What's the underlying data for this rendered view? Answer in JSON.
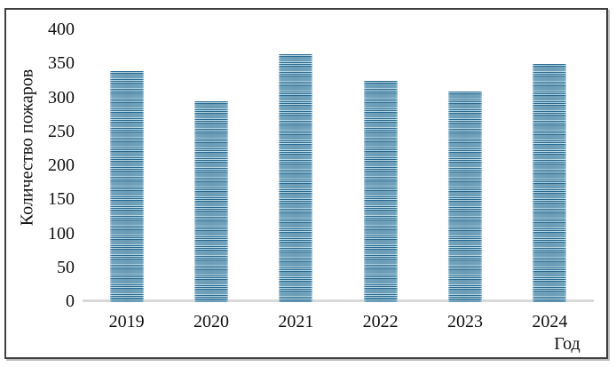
{
  "window": {
    "background": "#ffffff",
    "frame_border_color": "#3f3f3f",
    "frame_shadow_color": "#bdbdbd"
  },
  "chart_data": {
    "type": "bar",
    "categories": [
      "2019",
      "2020",
      "2021",
      "2022",
      "2023",
      "2024"
    ],
    "values": [
      340,
      295,
      365,
      325,
      310,
      350
    ],
    "title": "",
    "xlabel": "Год",
    "ylabel": "Количество пожаров",
    "ylim": [
      0,
      400
    ],
    "yticks": [
      0,
      50,
      100,
      150,
      200,
      250,
      300,
      350,
      400
    ],
    "grid": false,
    "legend": "none",
    "bar_stripe_dark": "#2c6c92",
    "bar_stripe_light": "#b6d9e7",
    "axis_line_color": "#d9d9d9",
    "text_color": "#111111"
  }
}
